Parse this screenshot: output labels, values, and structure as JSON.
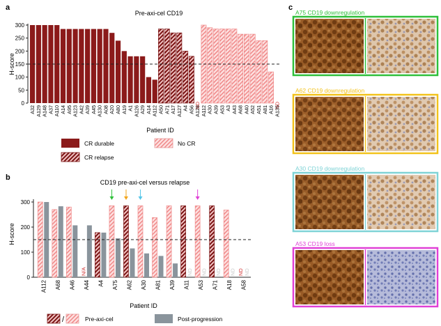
{
  "panel_labels": {
    "a": "a",
    "b": "b",
    "c": "c"
  },
  "colors": {
    "cr_durable": "#8b1a1a",
    "cr_relapse_fill": "#f2c4c4",
    "cr_relapse_stripe": "#7a1414",
    "no_cr_fill": "#fbd0d0",
    "no_cr_stripe": "#f08b8b",
    "post_progression": "#8a949c",
    "nd_text": "#d03030",
    "na_text": "#d03030",
    "frame_green": "#2fbf3a",
    "frame_yellow": "#f2c21b",
    "frame_cyan": "#7fd3d6",
    "frame_magenta": "#e040d6",
    "arrow_green": "#2fbf3a",
    "arrow_orange": "#f2a51b",
    "arrow_cyan": "#55c6e8",
    "arrow_magenta": "#e040d6"
  },
  "legend_a": {
    "cr_durable": "CR durable",
    "no_cr": "No CR",
    "cr_relapse": "CR relapse"
  },
  "legend_b": {
    "slash": "/",
    "pre": "Pre-axi-cel",
    "post": "Post-progression"
  },
  "nd_label": "ND",
  "na_label": "N/A",
  "chart_data": [
    {
      "type": "bar",
      "title": "Pre-axi-cel CD19",
      "xlabel": "Patient ID",
      "ylabel": "H-score",
      "ylim": [
        0,
        300
      ],
      "yticks": [
        0,
        50,
        100,
        150,
        200,
        250,
        300
      ],
      "threshold": 150,
      "categories": [
        "A32",
        "A129",
        "A148",
        "A37",
        "A110",
        "A14",
        "A95",
        "A123",
        "A42",
        "A39",
        "A45",
        "A130",
        "A08",
        "A20",
        "A80",
        "A19",
        "A1",
        "A126",
        "A29",
        "A14",
        "A112",
        "A50",
        "A71",
        "A17",
        "A127",
        "A4",
        "A56",
        "A128",
        "A112",
        "A30",
        "A39",
        "A53",
        "A3",
        "A43",
        "A68",
        "A40",
        "A52",
        "A51",
        "A81",
        "A16",
        "A135"
      ],
      "values": [
        300,
        300,
        300,
        300,
        300,
        285,
        285,
        285,
        285,
        285,
        285,
        285,
        285,
        270,
        240,
        200,
        180,
        180,
        180,
        100,
        90,
        285,
        285,
        270,
        270,
        200,
        180,
        null,
        300,
        290,
        285,
        285,
        285,
        285,
        265,
        265,
        265,
        240,
        240,
        120,
        null
      ],
      "groups": [
        "cr_durable",
        "cr_durable",
        "cr_durable",
        "cr_durable",
        "cr_durable",
        "cr_durable",
        "cr_durable",
        "cr_durable",
        "cr_durable",
        "cr_durable",
        "cr_durable",
        "cr_durable",
        "cr_durable",
        "cr_durable",
        "cr_durable",
        "cr_durable",
        "cr_durable",
        "cr_durable",
        "cr_durable",
        "cr_durable",
        "cr_durable",
        "cr_relapse",
        "cr_relapse",
        "cr_relapse",
        "cr_relapse",
        "cr_relapse",
        "cr_relapse",
        "cr_relapse",
        "no_cr",
        "no_cr",
        "no_cr",
        "no_cr",
        "no_cr",
        "no_cr",
        "no_cr",
        "no_cr",
        "no_cr",
        "no_cr",
        "no_cr",
        "no_cr",
        "no_cr"
      ],
      "legend": [
        "CR durable",
        "No CR",
        "CR relapse"
      ]
    },
    {
      "type": "bar",
      "title": "CD19 pre-axi-cel versus relapse",
      "xlabel": "Patient ID",
      "ylabel": "H-score",
      "ylim": [
        0,
        300
      ],
      "yticks": [
        0,
        100,
        200,
        300
      ],
      "threshold": 150,
      "categories": [
        "A112",
        "A68",
        "A46",
        "A44",
        "A4",
        "A75",
        "A62",
        "A30",
        "A81",
        "A39",
        "A11",
        "A53",
        "A71",
        "A18",
        "A58"
      ],
      "series": [
        {
          "name": "Pre-axi-cel",
          "values": [
            300,
            270,
            280,
            null,
            178,
            285,
            285,
            285,
            238,
            285,
            285,
            285,
            285,
            268,
            null
          ],
          "groups": [
            "no_cr",
            "no_cr",
            "no_cr",
            "na",
            "cr_relapse",
            "no_cr",
            "cr_relapse",
            "no_cr",
            "no_cr",
            "no_cr",
            "cr_relapse",
            "no_cr",
            "cr_relapse",
            "no_cr",
            "nd"
          ]
        },
        {
          "name": "Post-progression",
          "values": [
            300,
            283,
            207,
            207,
            178,
            155,
            115,
            95,
            85,
            55,
            null,
            null,
            null,
            null,
            null
          ]
        }
      ],
      "arrows": [
        {
          "category": "A75",
          "color": "green"
        },
        {
          "category": "A62",
          "color": "orange"
        },
        {
          "category": "A30",
          "color": "cyan"
        },
        {
          "category": "A53",
          "color": "magenta"
        }
      ],
      "legend": [
        "Pre-axi-cel",
        "Post-progression"
      ]
    }
  ],
  "panel_c": {
    "rows": [
      {
        "title": "A75 CD19 downregulation",
        "color": "green",
        "left_tone": "#7a4418",
        "right_tone": "#c9a27a"
      },
      {
        "title": "A62 CD19 downregulation",
        "color": "yellow",
        "left_tone": "#8a4f22",
        "right_tone": "#cfb08e"
      },
      {
        "title": "A30 CD19 downregulation",
        "color": "cyan",
        "left_tone": "#7e4a20",
        "right_tone": "#d4b592"
      },
      {
        "title": "A53 CD19 loss",
        "color": "magenta",
        "left_tone": "#7e4418",
        "right_tone": "#7f86b8"
      }
    ]
  }
}
